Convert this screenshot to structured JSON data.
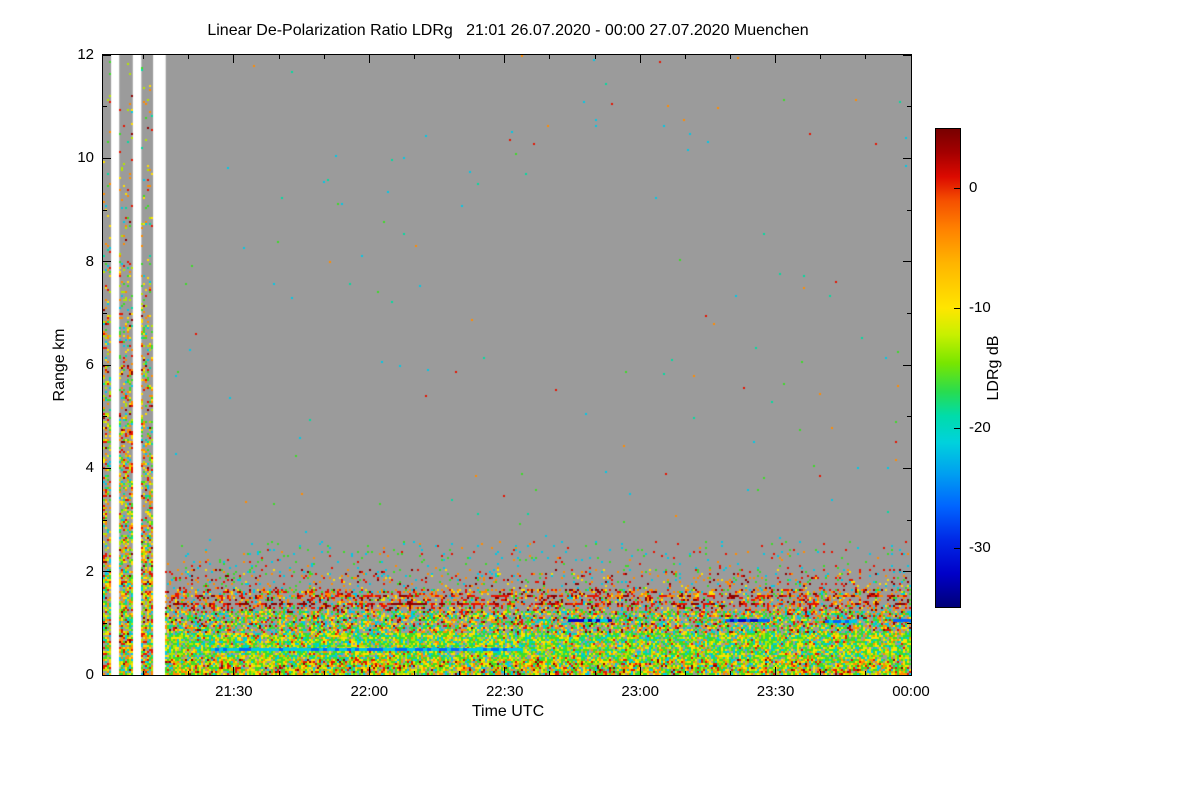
{
  "page": {
    "background": "#ffffff"
  },
  "chart_data": {
    "type": "heatmap",
    "title": "Linear De-Polarization Ratio LDRg   21:01 26.07.2020 - 00:00 27.07.2020 Muenchen",
    "xlabel": "Time UTC",
    "ylabel": "Range km",
    "station": "Muenchen",
    "time_start": "21:01 26.07.2020",
    "time_end": "00:00 27.07.2020",
    "x_range_minutes": [
      0,
      179
    ],
    "x_ticks": [
      {
        "label": "21:30",
        "min": 29
      },
      {
        "label": "22:00",
        "min": 59
      },
      {
        "label": "22:30",
        "min": 89
      },
      {
        "label": "23:00",
        "min": 119
      },
      {
        "label": "23:30",
        "min": 149
      },
      {
        "label": "00:00",
        "min": 179
      }
    ],
    "x_minor_step": 10,
    "x_minor_start": 9,
    "ylim": [
      0,
      12
    ],
    "y_ticks": [
      {
        "label": "0",
        "km": 0
      },
      {
        "label": "2",
        "km": 2
      },
      {
        "label": "4",
        "km": 4
      },
      {
        "label": "6",
        "km": 6
      },
      {
        "label": "8",
        "km": 8
      },
      {
        "label": "10",
        "km": 10
      },
      {
        "label": "12",
        "km": 12
      }
    ],
    "y_minor_step": 1,
    "background_color": "#9B9B9B",
    "no_data_color": "#ffffff",
    "seed": 20200726,
    "colors": {
      "darkred": "#8C0000",
      "red": "#E61400",
      "orangered": "#FF4600",
      "orange": "#FF8C00",
      "yellow": "#FFE000",
      "yellowgreen": "#B4E600",
      "green": "#3CDC28",
      "teal": "#00DCA0",
      "cyan": "#00C8E6",
      "blue": "#0064FF",
      "darkblue": "#0000C8"
    },
    "main_start": 13.9,
    "noise_columns": [
      {
        "t0": 0,
        "t1": 1.8
      },
      {
        "t0": 3.6,
        "t1": 6.6
      },
      {
        "t0": 8.5,
        "t1": 11.1
      }
    ],
    "white_gaps": [
      {
        "t0": 1.8,
        "t1": 3.6
      },
      {
        "t0": 6.6,
        "t1": 8.5
      },
      {
        "t0": 11.1,
        "t1": 13.9
      }
    ],
    "column_profile": [
      {
        "h1": 1,
        "d": 0.8
      },
      {
        "h1": 2,
        "d": 0.7
      },
      {
        "h1": 3,
        "d": 0.55
      },
      {
        "h1": 4,
        "d": 0.45
      },
      {
        "h1": 5,
        "d": 0.4
      },
      {
        "h1": 6,
        "d": 0.33
      },
      {
        "h1": 7,
        "d": 0.26
      },
      {
        "h1": 8,
        "d": 0.18
      },
      {
        "h1": 10,
        "d": 0.09
      },
      {
        "h1": 12,
        "d": 0.05
      }
    ],
    "column_weights": {
      "yellow": 3,
      "orange": 2.5,
      "green": 2.5,
      "red": 2,
      "cyan": 1.3,
      "darkred": 0.8,
      "yellowgreen": 2,
      "teal": 0.8
    },
    "bands": [
      {
        "h0": 0,
        "h1": 0.3,
        "density": 0.9,
        "weights": {
          "green": 4,
          "yellow": 3,
          "orange": 2,
          "red": 1.5,
          "cyan": 1.5,
          "darkred": 0.7,
          "yellowgreen": 2
        }
      },
      {
        "h0": 0.3,
        "h1": 0.8,
        "density": 0.88,
        "weights": {
          "green": 5,
          "yellowgreen": 3,
          "yellow": 3,
          "cyan": 2,
          "teal": 1.5,
          "orange": 1,
          "red": 0.5
        }
      },
      {
        "h0": 0.8,
        "h1": 1.25,
        "density": 0.68,
        "weights": {
          "green": 4,
          "yellow": 3,
          "cyan": 2,
          "orange": 2,
          "red": 1.5,
          "darkred": 0.8,
          "teal": 1
        }
      },
      {
        "h0": 1.25,
        "h1": 1.65,
        "density": 0.42,
        "weights": {
          "red": 3,
          "orange": 3,
          "darkred": 2,
          "yellow": 1.5,
          "green": 1.5,
          "cyan": 1
        }
      },
      {
        "h0": 1.65,
        "h1": 2.05,
        "density": 0.16,
        "weights": {
          "red": 2,
          "orange": 2,
          "cyan": 1.5,
          "green": 1.5,
          "darkred": 1,
          "yellow": 1
        }
      },
      {
        "h0": 2.05,
        "h1": 2.6,
        "density": 0.05,
        "weights": {
          "cyan": 2,
          "red": 1,
          "green": 1.5,
          "orange": 1
        }
      }
    ],
    "sparse": {
      "h0": 2.6,
      "density": 0.0015,
      "weights": {
        "cyan": 2,
        "green": 1.5,
        "red": 1,
        "orange": 1,
        "teal": 1
      }
    },
    "streaks": [
      {
        "t0": 24,
        "t1": 93,
        "km": 0.5,
        "h": 3,
        "colors": [
          "blue",
          "cyan",
          "cyan"
        ]
      },
      {
        "t0": 103,
        "t1": 112,
        "km": 1.06,
        "h": 3,
        "colors": [
          "blue",
          "darkblue",
          "cyan"
        ]
      },
      {
        "t0": 138,
        "t1": 147,
        "km": 1.07,
        "h": 3,
        "colors": [
          "blue",
          "darkblue"
        ]
      },
      {
        "t0": 160,
        "t1": 167,
        "km": 1.05,
        "h": 3,
        "colors": [
          "blue",
          "cyan"
        ]
      },
      {
        "t0": 175,
        "t1": 179,
        "km": 1.06,
        "h": 3,
        "colors": [
          "blue"
        ]
      },
      {
        "t0": 15,
        "t1": 179,
        "km": 1.38,
        "h": 2,
        "dash": 0.4,
        "colors": [
          "darkred",
          "red"
        ]
      },
      {
        "t0": 15,
        "t1": 179,
        "km": 1.52,
        "h": 2,
        "dash": 0.35,
        "colors": [
          "darkred",
          "red",
          "orange"
        ]
      }
    ],
    "colorbar": {
      "label": "LDRg dB",
      "vmax": 5,
      "vmin": -35,
      "ticks": [
        {
          "label": "0",
          "value": 0
        },
        {
          "label": "-10",
          "value": -10
        },
        {
          "label": "-20",
          "value": -20
        },
        {
          "label": "-30",
          "value": -30
        }
      ],
      "stops": [
        {
          "p": 0,
          "c": "#780000"
        },
        {
          "p": 0.05,
          "c": "#A50000"
        },
        {
          "p": 0.1,
          "c": "#DC0A00"
        },
        {
          "p": 0.15,
          "c": "#F55000"
        },
        {
          "p": 0.21,
          "c": "#FF8200"
        },
        {
          "p": 0.28,
          "c": "#FFB400"
        },
        {
          "p": 0.375,
          "c": "#FFE600"
        },
        {
          "p": 0.43,
          "c": "#C8F000"
        },
        {
          "p": 0.49,
          "c": "#78E600"
        },
        {
          "p": 0.55,
          "c": "#28DC50"
        },
        {
          "p": 0.6,
          "c": "#00DCAA"
        },
        {
          "p": 0.655,
          "c": "#00D2DC"
        },
        {
          "p": 0.72,
          "c": "#00A0F0"
        },
        {
          "p": 0.79,
          "c": "#0064FF"
        },
        {
          "p": 0.86,
          "c": "#0028E6"
        },
        {
          "p": 0.93,
          "c": "#0000C8"
        },
        {
          "p": 1,
          "c": "#000078"
        }
      ]
    }
  }
}
